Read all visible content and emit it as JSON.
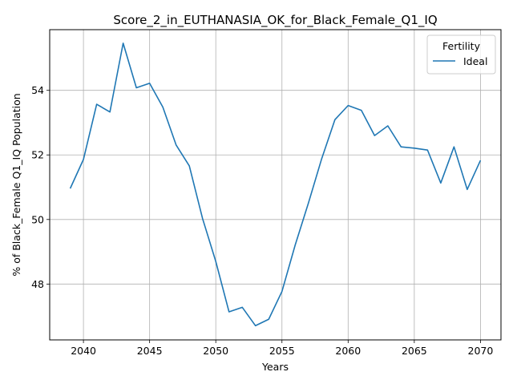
{
  "chart_data": {
    "type": "line",
    "title": "Score_2_in_EUTHANASIA_OK_for_Black_Female_Q1_IQ",
    "xlabel": "Years",
    "ylabel": "% of Black_Female Q1_IQ Population",
    "xlim": [
      2037.45,
      2071.55
    ],
    "ylim": [
      46.27,
      55.88
    ],
    "xticks": [
      2040,
      2045,
      2050,
      2055,
      2060,
      2065,
      2070
    ],
    "yticks": [
      48,
      50,
      52,
      54
    ],
    "grid": true,
    "legend": {
      "title": "Fertility",
      "position": "top-right"
    },
    "colors": {
      "series": "#1f77b4",
      "grid": "#b0b0b0"
    },
    "x": [
      2039,
      2040,
      2041,
      2042,
      2043,
      2044,
      2045,
      2046,
      2047,
      2048,
      2049,
      2050,
      2051,
      2052,
      2053,
      2054,
      2055,
      2056,
      2057,
      2058,
      2059,
      2060,
      2061,
      2062,
      2063,
      2064,
      2065,
      2066,
      2067,
      2068,
      2069,
      2070
    ],
    "series": [
      {
        "name": "Ideal",
        "values": [
          50.96,
          51.86,
          53.57,
          53.33,
          55.46,
          54.08,
          54.22,
          53.48,
          52.31,
          51.66,
          50.03,
          48.7,
          47.14,
          47.28,
          46.71,
          46.91,
          47.77,
          49.21,
          50.51,
          51.88,
          53.09,
          53.53,
          53.38,
          52.6,
          52.9,
          52.25,
          52.21,
          52.15,
          51.13,
          52.25,
          50.93,
          51.83
        ]
      }
    ]
  }
}
